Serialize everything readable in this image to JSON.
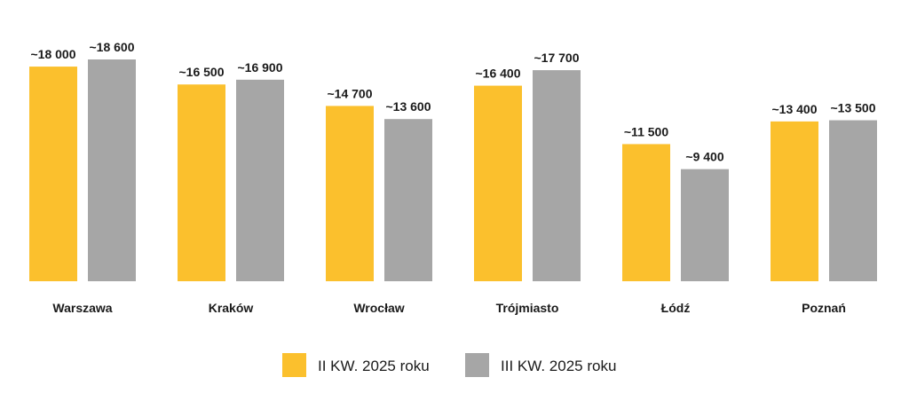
{
  "chart_data": {
    "type": "bar",
    "categories": [
      "Warszawa",
      "Kraków",
      "Wrocław",
      "Trójmiasto",
      "Łódź",
      "Poznań"
    ],
    "series": [
      {
        "name": "II KW. 2025 roku",
        "color": "#FBC02D",
        "values": [
          18000,
          16500,
          14700,
          16400,
          11500,
          13400
        ],
        "labels": [
          "~18 000",
          "~16 500",
          "~14 700",
          "~16 400",
          "~11 500",
          "~13 400"
        ]
      },
      {
        "name": "III KW. 2025 roku",
        "color": "#A6A6A6",
        "values": [
          18600,
          16900,
          13600,
          17700,
          9400,
          13500
        ],
        "labels": [
          "~18 600",
          "~16 900",
          "~13 600",
          "~17 700",
          "~9 400",
          "~13 500"
        ]
      }
    ],
    "title": "",
    "xlabel": "",
    "ylabel": "",
    "ylim": [
      0,
      18600
    ],
    "grid": false,
    "legend": "bottom-center"
  }
}
